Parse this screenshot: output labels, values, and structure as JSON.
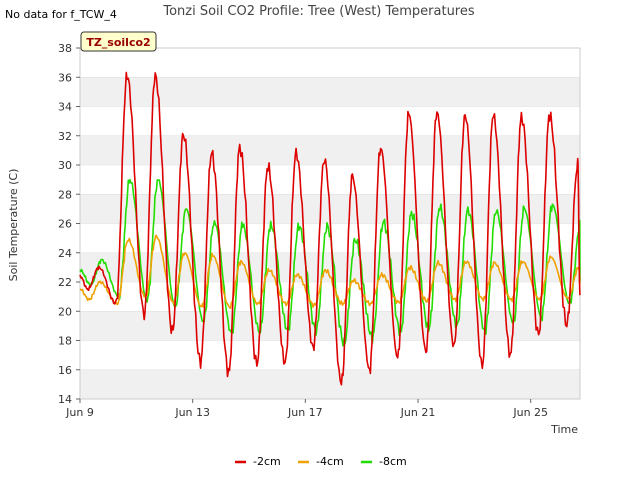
{
  "no_data_note": "No data for f_TCW_4",
  "badge": "TZ_soilco2",
  "colors": {
    "series": [
      "#dd0000",
      "#f0a000",
      "#22dd00"
    ],
    "band": "#f0f0f0",
    "grid": "#dddddd",
    "badge_bg": "#ffffcc"
  },
  "chart_data": {
    "type": "line",
    "title": "Tonzi Soil CO2 Profile: Tree (West) Temperatures",
    "xlabel": "Time",
    "ylabel": "Soil Temperature (C)",
    "x_unit": "day of June",
    "xlim": [
      9.0,
      26.75
    ],
    "ylim": [
      14,
      38
    ],
    "yticks": [
      14,
      16,
      18,
      20,
      22,
      24,
      26,
      28,
      30,
      32,
      34,
      36,
      38
    ],
    "xticks": [
      {
        "label": "Jun 9",
        "value": 9
      },
      {
        "label": "Jun 13",
        "value": 13
      },
      {
        "label": "Jun 17",
        "value": 17
      },
      {
        "label": "Jun 21",
        "value": 21
      },
      {
        "label": "Jun 25",
        "value": 25
      }
    ],
    "legend_position": "bottom-center",
    "series": [
      {
        "name": "-2cm",
        "days": [
          9,
          10,
          11,
          12,
          13,
          14,
          15,
          16,
          17,
          18,
          19,
          20,
          21,
          22,
          23,
          24,
          25,
          26
        ],
        "daily_min": [
          21.5,
          20.5,
          19.8,
          18.6,
          16.5,
          15.8,
          16.4,
          16.5,
          17.5,
          15.1,
          16.0,
          16.8,
          17.3,
          17.6,
          16.3,
          17.0,
          18.4,
          19.1
        ],
        "daily_max": [
          23.0,
          36.1,
          36.1,
          32.1,
          30.8,
          31.2,
          29.9,
          30.8,
          30.4,
          29.2,
          31.2,
          33.5,
          33.6,
          33.4,
          33.4,
          33.3,
          33.4,
          30.0
        ],
        "end_value": 21.1
      },
      {
        "name": "-4cm",
        "days": [
          9,
          10,
          11,
          12,
          13,
          14,
          15,
          16,
          17,
          18,
          19,
          20,
          21,
          22,
          23,
          24,
          25,
          26
        ],
        "daily_min": [
          20.8,
          20.5,
          21.0,
          20.6,
          20.3,
          20.3,
          20.5,
          20.5,
          20.4,
          20.5,
          20.5,
          20.6,
          20.7,
          20.8,
          20.8,
          20.8,
          20.8,
          20.9
        ],
        "daily_max": [
          22.0,
          24.9,
          25.1,
          24.0,
          23.8,
          23.4,
          22.8,
          22.5,
          22.8,
          22.1,
          22.5,
          23.0,
          23.3,
          23.4,
          23.3,
          23.4,
          23.7,
          23.0
        ],
        "end_value": 21.9
      },
      {
        "name": "-8cm",
        "days": [
          9,
          10,
          11,
          12,
          13,
          14,
          15,
          16,
          17,
          18,
          19,
          20,
          21,
          22,
          23,
          24,
          25,
          26
        ],
        "daily_min": [
          21.8,
          21.0,
          20.7,
          20.3,
          19.3,
          18.5,
          18.6,
          18.7,
          18.7,
          17.8,
          18.2,
          18.6,
          18.8,
          19.0,
          18.6,
          19.2,
          19.6,
          20.5
        ],
        "daily_max": [
          23.5,
          29.0,
          29.0,
          27.0,
          26.1,
          25.9,
          25.9,
          25.8,
          25.8,
          24.9,
          26.1,
          26.7,
          27.1,
          26.9,
          26.9,
          27.0,
          27.3,
          26.0
        ],
        "end_value": 22.0
      }
    ]
  }
}
